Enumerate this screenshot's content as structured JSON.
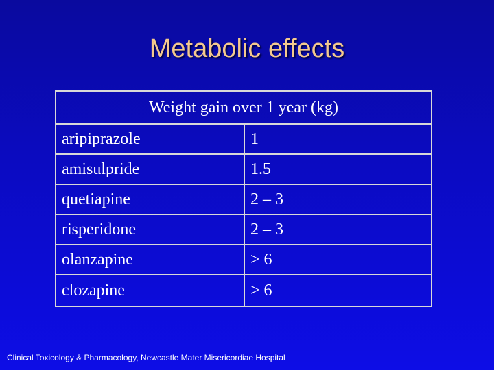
{
  "title": "Metabolic effects",
  "table": {
    "header": "Weight gain over 1 year (kg)",
    "rows": [
      {
        "drug": "aripiprazole",
        "value": "1"
      },
      {
        "drug": "amisulpride",
        "value": "1.5"
      },
      {
        "drug": "quetiapine",
        "value": "2 – 3"
      },
      {
        "drug": "risperidone",
        "value": "2 – 3"
      },
      {
        "drug": "olanzapine",
        "value": "> 6"
      },
      {
        "drug": "clozapine",
        "value": "> 6"
      }
    ]
  },
  "footer": "Clinical Toxicology & Pharmacology, Newcastle Mater Misericordiae Hospital",
  "colors": {
    "background": "#0b0bc2",
    "title": "#f4c98e",
    "text": "#ffffff",
    "border": "#d8d8d8"
  }
}
